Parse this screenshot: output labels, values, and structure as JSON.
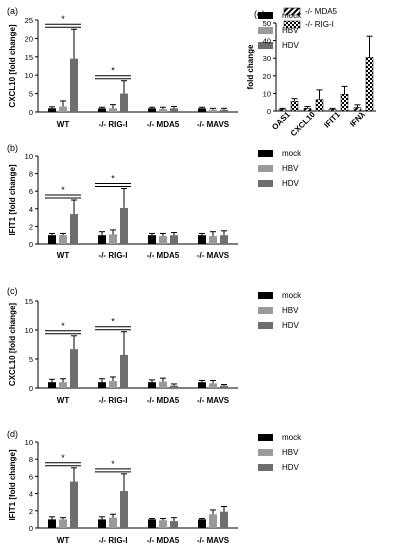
{
  "colors": {
    "mock": "#000000",
    "hbv": "#9a9a9a",
    "hdv": "#6e6e6e",
    "axis": "#000000"
  },
  "legend_main": {
    "mock": "mock",
    "hbv": "HBV",
    "hdv": "HDV"
  },
  "legend_e": {
    "mda5": "-/- MDA5",
    "rigi": "-/- RIG-I"
  },
  "chart_data": [
    {
      "panel": "(a)",
      "type": "bar",
      "ylabel": "CXCL10 [fold change]",
      "ylim": [
        0,
        25
      ],
      "yticks": [
        0,
        5,
        10,
        15,
        20,
        25
      ],
      "categories": [
        "WT",
        "-/- RIG-I",
        "-/- MDA5",
        "-/- MAVS"
      ],
      "series": [
        {
          "name": "mock",
          "values": [
            1,
            1,
            1,
            1
          ],
          "errors": [
            0.4,
            0.3,
            0.3,
            0.3
          ]
        },
        {
          "name": "HBV",
          "values": [
            1.5,
            1,
            0.8,
            0.6
          ],
          "errors": [
            1.5,
            1,
            0.5,
            0.4
          ]
        },
        {
          "name": "HDV",
          "values": [
            14.5,
            5,
            1,
            0.6
          ],
          "errors": [
            8,
            3.5,
            0.5,
            0.4
          ]
        }
      ],
      "significance": [
        {
          "group": 0,
          "from": "mock",
          "to": "HDV",
          "label": "*"
        },
        {
          "group": 1,
          "from": "mock",
          "to": "HDV",
          "label": "*"
        }
      ]
    },
    {
      "panel": "(b)",
      "type": "bar",
      "ylabel": "IFIT1 [fold change]",
      "ylim": [
        0,
        10
      ],
      "yticks": [
        0,
        2,
        4,
        6,
        8,
        10
      ],
      "categories": [
        "WT",
        "-/- RIG-I",
        "-/- MDA5",
        "-/- MAVS"
      ],
      "series": [
        {
          "name": "mock",
          "values": [
            1,
            1,
            1,
            1
          ],
          "errors": [
            0.2,
            0.4,
            0.2,
            0.2
          ]
        },
        {
          "name": "HBV",
          "values": [
            1,
            1.1,
            0.9,
            0.9
          ],
          "errors": [
            0.2,
            0.5,
            0.3,
            0.5
          ]
        },
        {
          "name": "HDV",
          "values": [
            3.4,
            4.1,
            1,
            1
          ],
          "errors": [
            1.6,
            2.2,
            0.3,
            0.5
          ]
        }
      ],
      "significance": [
        {
          "group": 0,
          "from": "mock",
          "to": "HDV",
          "label": "*"
        },
        {
          "group": 1,
          "from": "mock",
          "to": "HDV",
          "label": "*"
        }
      ]
    },
    {
      "panel": "(c)",
      "type": "bar",
      "ylabel": "CXCL10 [fold change]",
      "ylim": [
        0,
        15
      ],
      "yticks": [
        0,
        5,
        10,
        15
      ],
      "categories": [
        "WT",
        "-/- RIG-I",
        "-/- MDA5",
        "-/- MAVS"
      ],
      "series": [
        {
          "name": "mock",
          "values": [
            1,
            1,
            1,
            1
          ],
          "errors": [
            0.5,
            0.6,
            0.4,
            0.3
          ]
        },
        {
          "name": "HBV",
          "values": [
            1,
            1.2,
            1.1,
            0.8
          ],
          "errors": [
            0.6,
            0.7,
            0.6,
            0.5
          ]
        },
        {
          "name": "HDV",
          "values": [
            6.7,
            5.7,
            0.4,
            0.4
          ],
          "errors": [
            2.3,
            4,
            0.3,
            0.2
          ]
        }
      ],
      "significance": [
        {
          "group": 0,
          "from": "mock",
          "to": "HDV",
          "label": "*"
        },
        {
          "group": 1,
          "from": "mock",
          "to": "HDV",
          "label": "*"
        }
      ]
    },
    {
      "panel": "(d)",
      "type": "bar",
      "ylabel": "IFIT1 [fold change]",
      "ylim": [
        0,
        10
      ],
      "yticks": [
        0,
        2,
        4,
        6,
        8,
        10
      ],
      "categories": [
        "WT",
        "-/- RIG-I",
        "-/- MDA5",
        "-/- MAVS"
      ],
      "series": [
        {
          "name": "mock",
          "values": [
            1,
            1,
            1,
            1
          ],
          "errors": [
            0.3,
            0.3,
            0.1,
            0.1
          ]
        },
        {
          "name": "HBV",
          "values": [
            1,
            1.2,
            0.9,
            1.6
          ],
          "errors": [
            0.2,
            0.4,
            0.2,
            0.5
          ]
        },
        {
          "name": "HDV",
          "values": [
            5.4,
            4.3,
            0.8,
            1.9
          ],
          "errors": [
            1.6,
            2,
            0.4,
            0.6
          ]
        }
      ],
      "significance": [
        {
          "group": 0,
          "from": "mock",
          "to": "HDV",
          "label": "*"
        },
        {
          "group": 1,
          "from": "mock",
          "to": "HDV",
          "label": "*"
        }
      ]
    },
    {
      "panel": "(e)",
      "type": "bar",
      "ylabel": "fold change",
      "ylim": [
        0,
        50
      ],
      "yticks": [
        0,
        10,
        20,
        30,
        40,
        50
      ],
      "categories": [
        "OAS1",
        "CXCL10",
        "IFIT1",
        "IFNλ"
      ],
      "series": [
        {
          "name": "-/- MDA5",
          "values": [
            1,
            1.5,
            1,
            2
          ],
          "errors": [
            0.5,
            1,
            0.5,
            1.5
          ]
        },
        {
          "name": "-/- RIG-I",
          "values": [
            5.5,
            6.5,
            9.5,
            30.5
          ],
          "errors": [
            1.5,
            5.5,
            4.5,
            12
          ]
        }
      ]
    }
  ]
}
